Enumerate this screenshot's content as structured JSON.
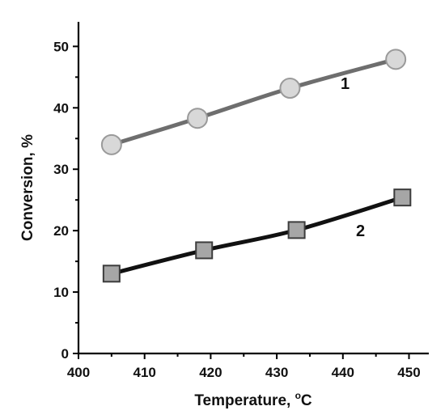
{
  "chart_data": {
    "type": "line",
    "xlabel": "Temperature, ",
    "xlabel_unit_sup": "o",
    "xlabel_unit": "C",
    "ylabel": "Conversion, %",
    "xlim": [
      400,
      453
    ],
    "ylim": [
      0,
      54
    ],
    "x_ticks": [
      400,
      410,
      420,
      430,
      440,
      450
    ],
    "y_ticks": [
      0,
      10,
      20,
      30,
      40,
      50
    ],
    "grid": false,
    "series": [
      {
        "name": "1",
        "marker": "circle",
        "line_color": "#6e6e6e",
        "marker_fill": "#d8d8d8",
        "marker_stroke": "#9a9a9a",
        "points": [
          {
            "x": 405,
            "y": 34
          },
          {
            "x": 418,
            "y": 38.3
          },
          {
            "x": 432,
            "y": 43.2
          },
          {
            "x": 448,
            "y": 47.9
          }
        ]
      },
      {
        "name": "2",
        "marker": "square",
        "line_color": "#111111",
        "marker_fill": "#a6a6a6",
        "marker_stroke": "#3c3c3c",
        "points": [
          {
            "x": 405,
            "y": 13
          },
          {
            "x": 419,
            "y": 16.8
          },
          {
            "x": 433,
            "y": 20.1
          },
          {
            "x": 449,
            "y": 25.4
          }
        ]
      }
    ]
  }
}
